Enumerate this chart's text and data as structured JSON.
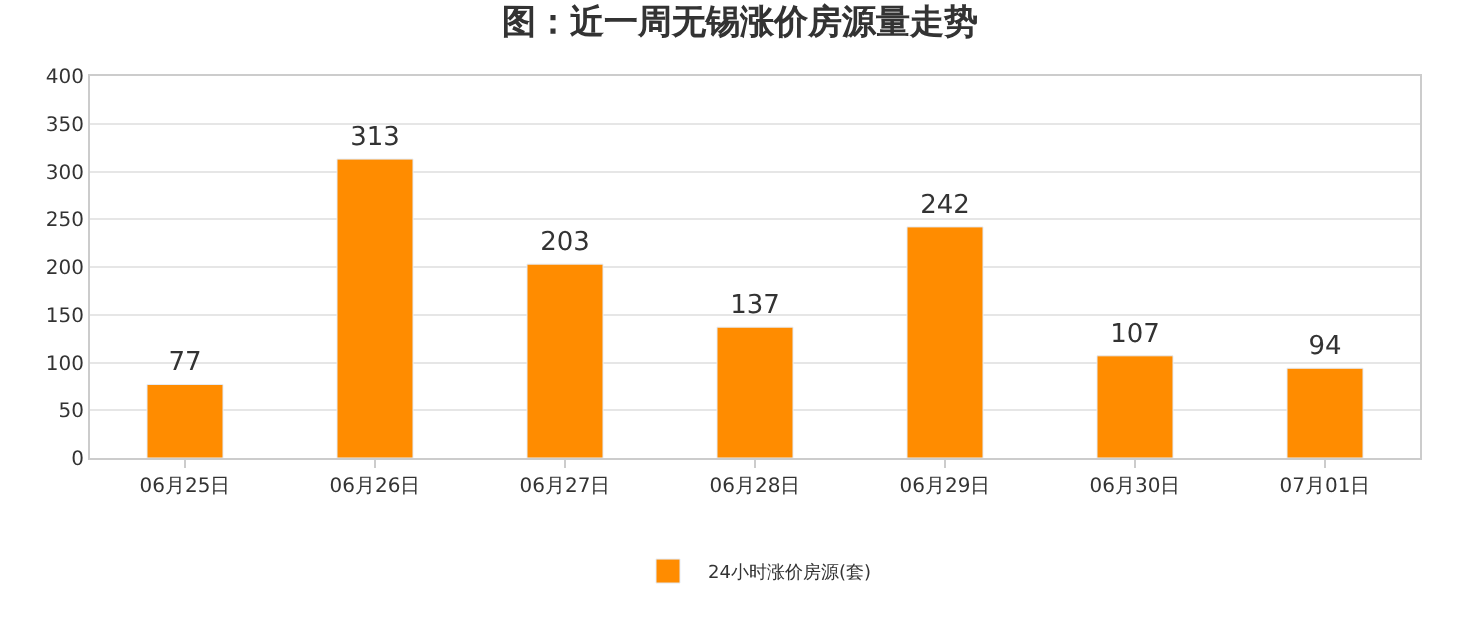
{
  "chart_data": {
    "type": "bar",
    "title": "图：近一周无锡涨价房源量走势",
    "categories": [
      "06月25日",
      "06月26日",
      "06月27日",
      "06月28日",
      "06月29日",
      "06月30日",
      "07月01日"
    ],
    "series": [
      {
        "name": "24小时涨价房源(套)",
        "color": "#ff8c00",
        "values": [
          77,
          313,
          203,
          137,
          242,
          107,
          94
        ]
      }
    ],
    "ylim": [
      0,
      400
    ],
    "yticks": [
      0,
      50,
      100,
      150,
      200,
      250,
      300,
      350,
      400
    ],
    "grid": "y",
    "legend": "bottom",
    "data_labels": true
  }
}
